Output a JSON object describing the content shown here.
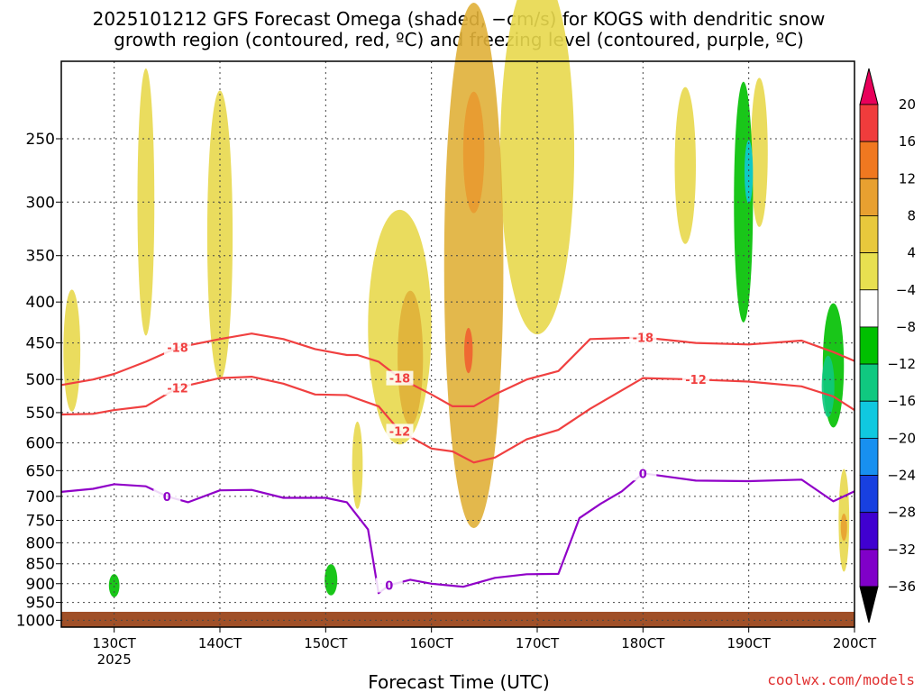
{
  "header": {
    "title_line1": "2025101212 GFS Forecast Omega (shaded, −cm/s) for KOGS with dendritic snow",
    "title_line2": "growth region (contoured, red, ºC) and freezing level (contoured, purple, ºC)"
  },
  "footer": {
    "xlabel": "Forecast Time (UTC)",
    "credit": "coolwx.com/models"
  },
  "chart_data": {
    "type": "heatmap",
    "title": "2025101212 GFS Forecast Omega (shaded, −cm/s) for KOGS with dendritic snow growth region (contoured, red, ºC) and freezing level (contoured, purple, ºC)",
    "xlabel": "Forecast Time (UTC)",
    "ylabel": "",
    "x_ticks": [
      "130CT",
      "140CT",
      "150CT",
      "160CT",
      "170CT",
      "180CT",
      "190CT",
      "200CT"
    ],
    "x_tick_values": [
      13,
      14,
      15,
      16,
      17,
      18,
      19,
      20
    ],
    "x_year_label": "2025",
    "xlim": [
      12.5,
      20.0
    ],
    "y_ticks": [
      "250",
      "300",
      "350",
      "400",
      "450",
      "500",
      "550",
      "600",
      "650",
      "700",
      "750",
      "800",
      "850",
      "900",
      "950",
      "1000"
    ],
    "y_tick_values": [
      250,
      300,
      350,
      400,
      450,
      500,
      550,
      600,
      650,
      700,
      750,
      800,
      850,
      900,
      950,
      1000
    ],
    "ylim": [
      1020,
      200
    ],
    "grid": true,
    "colorbar": {
      "labels": [
        "20",
        "16",
        "12",
        "8",
        "4",
        "−4",
        "−8",
        "−12",
        "−16",
        "−20",
        "−24",
        "−28",
        "−32",
        "−36"
      ],
      "levels": [
        20,
        16,
        12,
        8,
        4,
        -4,
        -8,
        -12,
        -16,
        -20,
        -24,
        -28,
        -32,
        -36
      ],
      "colors": [
        "#e8005a",
        "#f03c3c",
        "#f07820",
        "#e8a030",
        "#e8c83c",
        "#e8e050",
        "#ffffff",
        "#00c000",
        "#10c880",
        "#10c8e0",
        "#1890f0",
        "#1840e0",
        "#4000d0",
        "#8000c8",
        "#b000c0",
        "#a0a0a0",
        "#000000"
      ]
    },
    "series": [
      {
        "name": "-18",
        "color": "#f04040",
        "x": [
          12.5,
          12.8,
          13.0,
          13.3,
          13.6,
          14.0,
          14.3,
          14.6,
          14.9,
          15.2,
          15.3,
          15.5,
          15.7,
          16.0,
          16.2,
          16.4,
          16.6,
          16.9,
          17.2,
          17.5,
          18.0,
          18.5,
          19.0,
          19.5,
          19.8,
          20.0
        ],
        "y": [
          508,
          500,
          492,
          475,
          456,
          445,
          438,
          445,
          458,
          466,
          466,
          475,
          498,
          522,
          540,
          540,
          522,
          500,
          488,
          445,
          443,
          450,
          452,
          447,
          462,
          474
        ],
        "label": "-18"
      },
      {
        "name": "-12",
        "color": "#f04040",
        "x": [
          12.5,
          12.8,
          13.0,
          13.3,
          13.6,
          14.0,
          14.3,
          14.6,
          14.9,
          15.2,
          15.5,
          15.7,
          16.0,
          16.2,
          16.4,
          16.6,
          16.9,
          17.2,
          17.5,
          18.0,
          18.5,
          19.0,
          19.5,
          19.8,
          20.0
        ],
        "y": [
          553,
          552,
          546,
          540,
          512,
          498,
          496,
          506,
          522,
          523,
          540,
          580,
          610,
          615,
          635,
          626,
          594,
          578,
          544,
          498,
          500,
          503,
          510,
          525,
          546
        ],
        "label": "-12"
      },
      {
        "name": "0",
        "color": "#9000c8",
        "x": [
          12.5,
          12.8,
          13.0,
          13.3,
          13.5,
          13.7,
          14.0,
          14.3,
          14.6,
          15.0,
          15.2,
          15.4,
          15.5,
          15.6,
          15.8,
          16.0,
          16.3,
          16.6,
          16.9,
          17.2,
          17.4,
          17.6,
          17.8,
          18.0,
          18.5,
          19.0,
          19.5,
          19.8,
          20.0
        ],
        "y": [
          691,
          685,
          676,
          680,
          700,
          712,
          688,
          687,
          703,
          703,
          712,
          770,
          925,
          904,
          890,
          900,
          908,
          885,
          876,
          875,
          745,
          715,
          690,
          655,
          669,
          670,
          667,
          710,
          690
        ],
        "label": "0"
      }
    ]
  }
}
